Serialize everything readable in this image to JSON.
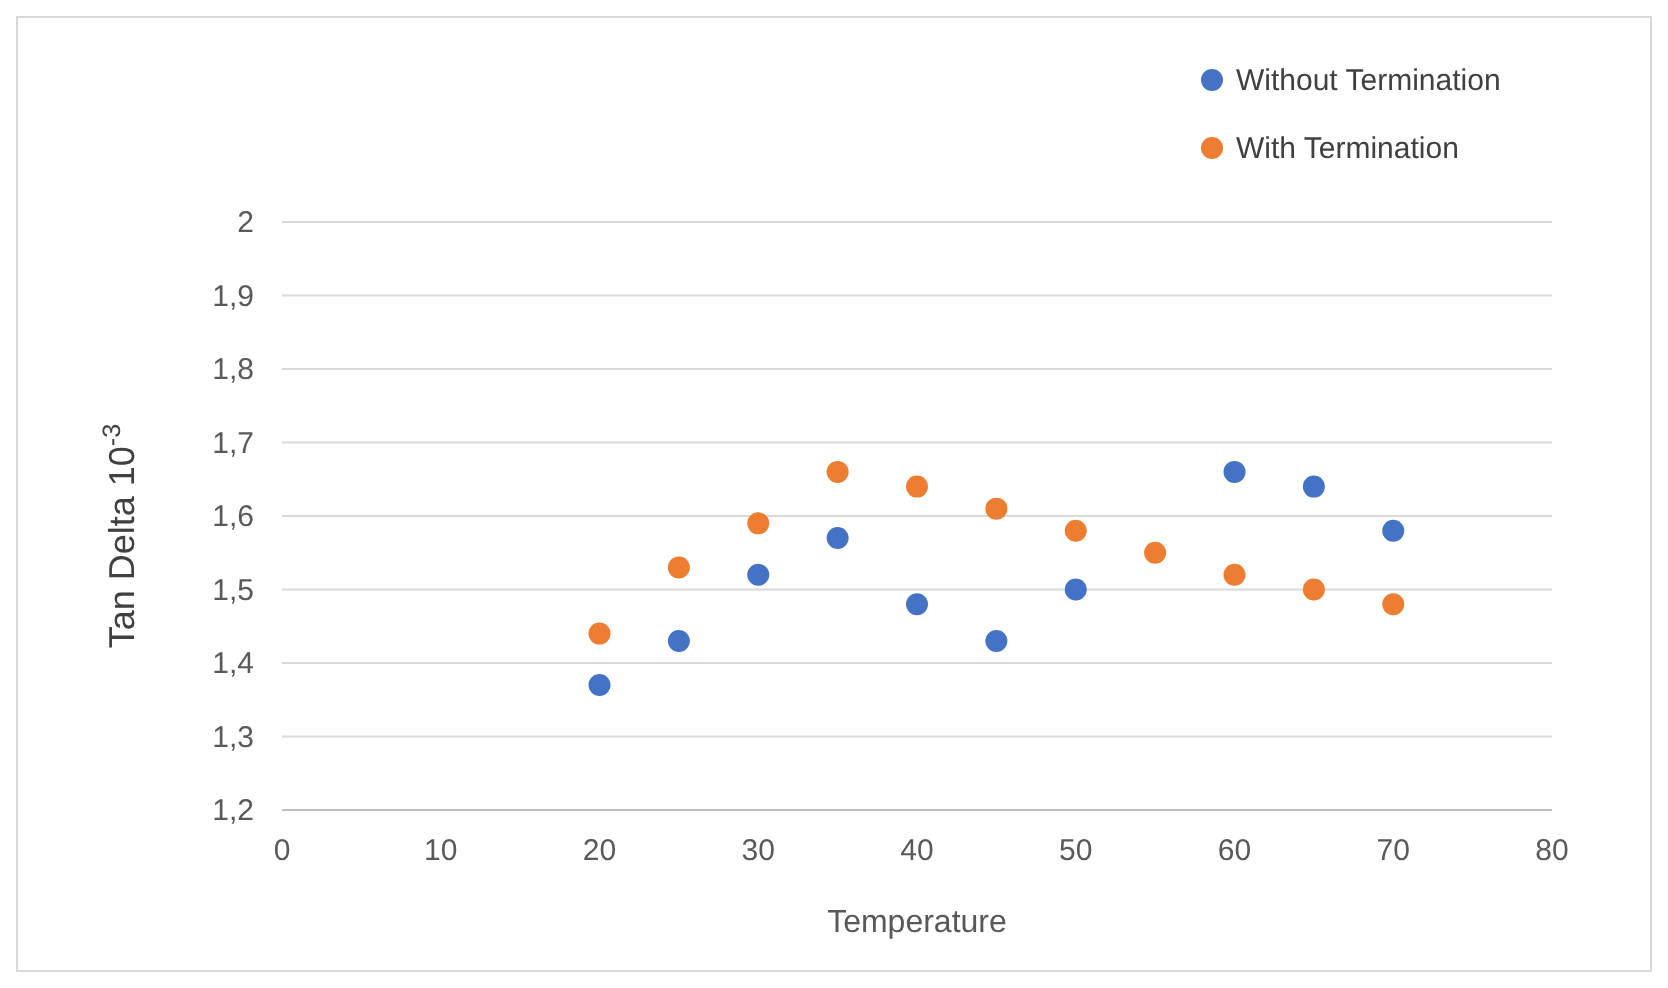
{
  "chart_data": {
    "type": "scatter",
    "xlabel": "Temperature",
    "ylabel": "Tan Delta 10$^{-3}$",
    "xlim": [
      0,
      80
    ],
    "xticks": [
      0,
      10,
      20,
      30,
      40,
      50,
      60,
      70,
      80
    ],
    "ylim": [
      1.2,
      2
    ],
    "yticks": [
      {
        "value": 1.2,
        "label": "1,2"
      },
      {
        "value": 1.3,
        "label": "1,3"
      },
      {
        "value": 1.4,
        "label": "1,4"
      },
      {
        "value": 1.5,
        "label": "1,5"
      },
      {
        "value": 1.6,
        "label": "1,6"
      },
      {
        "value": 1.7,
        "label": "1,7"
      },
      {
        "value": 1.8,
        "label": "1,8"
      },
      {
        "value": 1.9,
        "label": "1,9"
      },
      {
        "value": 2,
        "label": "2"
      }
    ],
    "grid": "y",
    "legend": "top right",
    "marker": "circle",
    "series": [
      {
        "name": "Without Termination",
        "color": "#4472c4",
        "x": [
          20,
          25,
          30,
          35,
          40,
          45,
          50,
          null,
          60,
          65,
          70
        ],
        "values": [
          1.37,
          1.43,
          1.52,
          1.57,
          1.48,
          1.43,
          1.5,
          null,
          1.66,
          1.64,
          1.58
        ]
      },
      {
        "name": "With Termination",
        "color": "#ed7d31",
        "x": [
          20,
          25,
          30,
          35,
          40,
          45,
          50,
          55,
          60,
          65,
          70
        ],
        "values": [
          1.44,
          1.53,
          1.59,
          1.66,
          1.64,
          1.61,
          1.58,
          1.55,
          1.52,
          1.5,
          1.48
        ]
      }
    ]
  }
}
